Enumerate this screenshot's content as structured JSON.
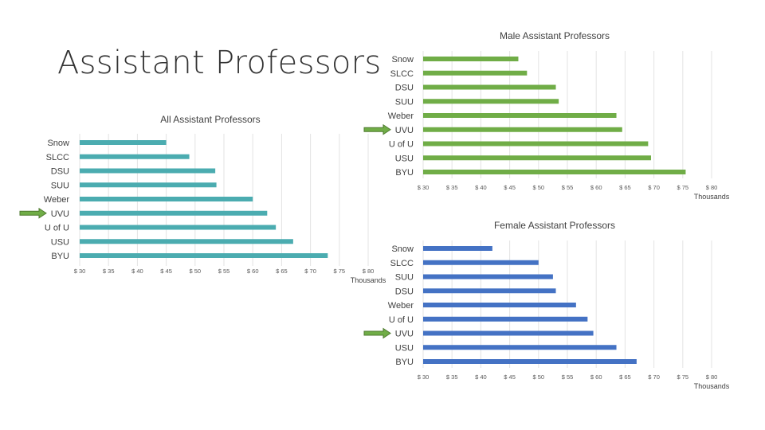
{
  "slide": {
    "title": "Assistant Professors"
  },
  "chart_data": [
    {
      "id": "all",
      "type": "bar",
      "orientation": "horizontal",
      "title": "All Assistant Professors",
      "categories": [
        "Snow",
        "SLCC",
        "DSU",
        "SUU",
        "Weber",
        "UVU",
        "U of U",
        "USU",
        "BYU"
      ],
      "values": [
        45,
        49,
        53.5,
        53.7,
        60,
        62.5,
        64,
        67,
        73
      ],
      "xlim": [
        30,
        80
      ],
      "xticks": [
        "$ 30",
        "$ 35",
        "$ 40",
        "$ 45",
        "$ 50",
        "$ 55",
        "$ 60",
        "$ 65",
        "$ 70",
        "$ 75",
        "$ 80"
      ],
      "xunit_label": "Thousands",
      "highlighted_category": "UVU",
      "bar_color": "#4bacb0",
      "grid": true
    },
    {
      "id": "male",
      "type": "bar",
      "orientation": "horizontal",
      "title": "Male Assistant Professors",
      "categories": [
        "Snow",
        "SLCC",
        "DSU",
        "SUU",
        "Weber",
        "UVU",
        "U of U",
        "USU",
        "BYU"
      ],
      "values": [
        46.5,
        48,
        53,
        53.5,
        63.5,
        64.5,
        69,
        69.5,
        75.5
      ],
      "xlim": [
        30,
        80
      ],
      "xticks": [
        "$ 30",
        "$ 35",
        "$ 40",
        "$ 45",
        "$ 50",
        "$ 55",
        "$ 60",
        "$ 65",
        "$ 70",
        "$ 75",
        "$ 80"
      ],
      "xunit_label": "Thousands",
      "highlighted_category": "UVU",
      "bar_color": "#70ad47",
      "grid": true
    },
    {
      "id": "female",
      "type": "bar",
      "orientation": "horizontal",
      "title": "Female Assistant Professors",
      "categories": [
        "Snow",
        "SLCC",
        "SUU",
        "DSU",
        "Weber",
        "U of U",
        "UVU",
        "USU",
        "BYU"
      ],
      "values": [
        42,
        50,
        52.5,
        53,
        56.5,
        58.5,
        59.5,
        63.5,
        67
      ],
      "xlim": [
        30,
        80
      ],
      "xticks": [
        "$ 30",
        "$ 35",
        "$ 40",
        "$ 45",
        "$ 50",
        "$ 55",
        "$ 60",
        "$ 65",
        "$ 70",
        "$ 75",
        "$ 80"
      ],
      "xunit_label": "Thousands",
      "highlighted_category": "UVU",
      "bar_color": "#4472c4",
      "grid": true
    }
  ],
  "icons": {
    "highlight_marker": "right-arrow-icon",
    "highlight_color": "#70ad47",
    "highlight_border": "#4e7a2f"
  }
}
